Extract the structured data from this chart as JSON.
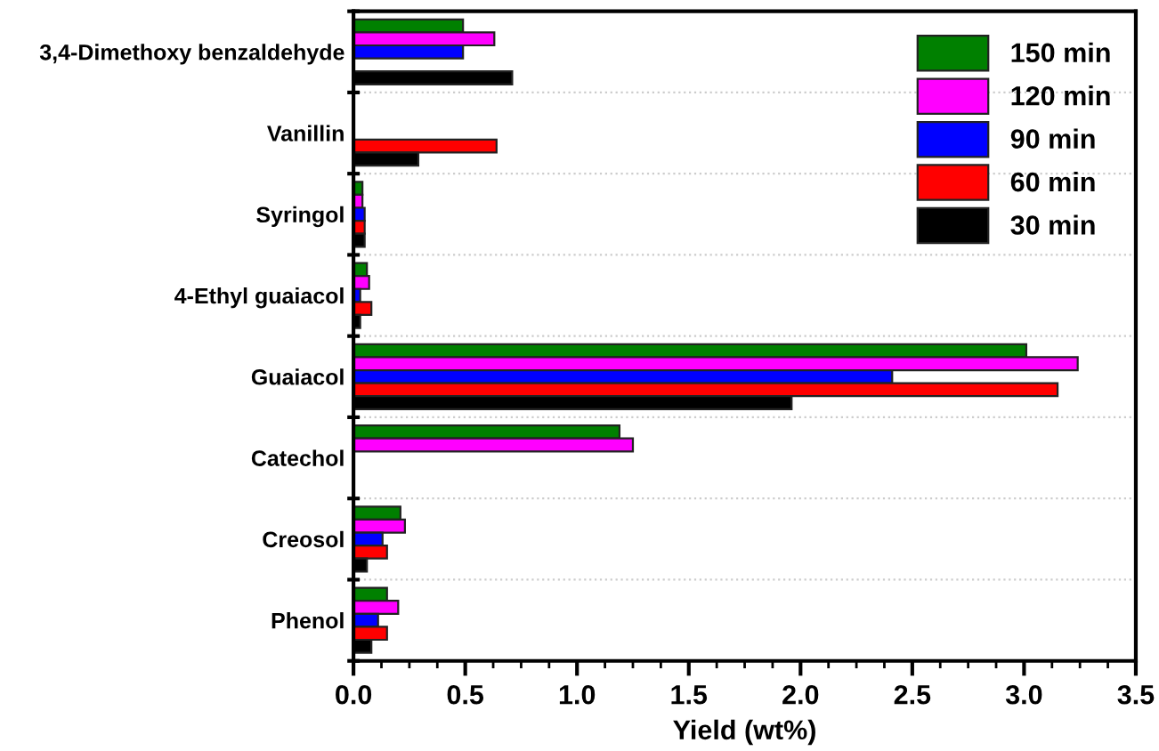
{
  "chart_data": {
    "type": "bar",
    "orientation": "horizontal",
    "xlabel": "Yield (wt%)",
    "categories": [
      "3,4-Dimethoxy benzaldehyde",
      "Vanillin",
      "Syringol",
      "4-Ethyl guaiacol",
      "Guaiacol",
      "Catechol",
      "Creosol",
      "Phenol"
    ],
    "series": [
      {
        "name": "150 min",
        "color": "#008000",
        "values": [
          0.49,
          null,
          0.04,
          0.06,
          3.01,
          1.19,
          0.21,
          0.15
        ]
      },
      {
        "name": "120 min",
        "color": "#ff00ff",
        "values": [
          0.63,
          null,
          0.04,
          0.07,
          3.24,
          1.25,
          0.23,
          0.2
        ]
      },
      {
        "name": "90 min",
        "color": "#0000ff",
        "values": [
          0.49,
          null,
          0.05,
          0.03,
          2.41,
          null,
          0.13,
          0.11
        ]
      },
      {
        "name": "60 min",
        "color": "#ff0000",
        "values": [
          null,
          0.64,
          0.05,
          0.08,
          3.15,
          null,
          0.15,
          0.15
        ]
      },
      {
        "name": "30 min",
        "color": "#000000",
        "values": [
          0.71,
          0.29,
          0.05,
          0.03,
          1.96,
          null,
          0.06,
          0.08
        ]
      }
    ],
    "xlim": [
      0,
      3.5
    ],
    "xticks": [
      {
        "value": 0,
        "label": "0.0"
      },
      0.5,
      {
        "value": 1,
        "label": "1.0"
      },
      1.5,
      {
        "value": 2,
        "label": "2.0"
      },
      2.5,
      {
        "value": 3,
        "label": "3.0"
      },
      3.5
    ],
    "grid": "y",
    "legend": "top right"
  }
}
